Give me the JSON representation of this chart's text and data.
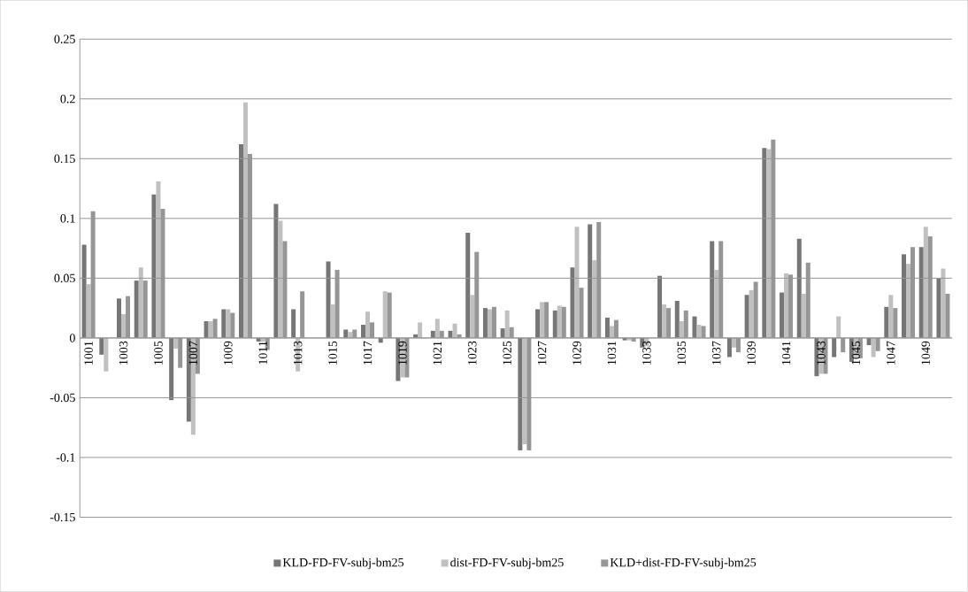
{
  "chart_data": {
    "type": "bar",
    "categories": [
      "1001",
      null,
      "1003",
      null,
      "1005",
      null,
      "1007",
      null,
      "1009",
      null,
      "1011",
      null,
      "1013",
      null,
      "1015",
      null,
      "1017",
      null,
      "1019",
      null,
      "1021",
      null,
      "1023",
      null,
      "1025",
      null,
      "1027",
      null,
      "1029",
      null,
      "1031",
      null,
      "1033",
      null,
      "1035",
      null,
      "1037",
      null,
      "1039",
      null,
      "1041",
      null,
      "1043",
      null,
      "1045",
      null,
      "1047",
      null,
      "1049",
      null
    ],
    "series": [
      {
        "name": "KLD-FD-FV-subj-bm25",
        "color": "#767676",
        "values": [
          0.078,
          -0.014,
          0.033,
          0.048,
          0.12,
          -0.052,
          -0.07,
          0.014,
          0.024,
          0.162,
          -0.003,
          0.112,
          0.024,
          0,
          0.064,
          0.007,
          0.011,
          -0.004,
          -0.036,
          0.003,
          0.006,
          0.006,
          0.088,
          0.025,
          0.008,
          -0.094,
          0.024,
          0.023,
          0.059,
          0.095,
          0.017,
          -0.002,
          -0.008,
          0.052,
          0.031,
          0.018,
          0.081,
          -0.016,
          0.036,
          0.159,
          0.038,
          0.083,
          -0.032,
          -0.016,
          -0.02,
          -0.006,
          0.026,
          0.07,
          0.076,
          0.05
        ]
      },
      {
        "name": "dist-FD-FV-subj-bm25",
        "color": "#c0c0c0",
        "values": [
          0.045,
          -0.028,
          0.02,
          0.059,
          0.131,
          -0.009,
          -0.081,
          0.014,
          0.024,
          0.197,
          -0.003,
          0.098,
          -0.028,
          0,
          0.028,
          0.005,
          0.022,
          0.039,
          -0.033,
          0.013,
          0.016,
          0.012,
          0.036,
          0.024,
          0.023,
          -0.089,
          0.03,
          0.027,
          0.093,
          0.065,
          0.01,
          -0.002,
          -0.007,
          0.028,
          0.014,
          0.011,
          0.057,
          -0.008,
          0.04,
          0.158,
          0.054,
          0.037,
          -0.03,
          0.018,
          -0.016,
          -0.016,
          0.036,
          0.062,
          0.093,
          0.058
        ]
      },
      {
        "name": "KLD+dist-FD-FV-subj-bm25",
        "color": "#969696",
        "values": [
          0.106,
          0,
          0.035,
          0.048,
          0.108,
          -0.025,
          -0.03,
          0.016,
          0.021,
          0.154,
          -0.01,
          0.081,
          0.039,
          0,
          0.057,
          0.007,
          0.013,
          0.038,
          -0.033,
          0,
          0.006,
          0.003,
          0.072,
          0.026,
          0.009,
          -0.094,
          0.03,
          0.026,
          0.042,
          0.097,
          0.015,
          -0.003,
          0,
          0.025,
          0.023,
          0.01,
          0.081,
          -0.012,
          0.047,
          0.166,
          0.053,
          0.063,
          -0.03,
          -0.012,
          -0.017,
          -0.011,
          0.025,
          0.076,
          0.085,
          0.037
        ]
      }
    ],
    "ylim": [
      -0.15,
      0.25
    ],
    "yticks": [
      -0.15,
      -0.1,
      -0.05,
      0,
      0.05,
      0.1,
      0.15,
      0.2,
      0.25
    ],
    "grid": "y",
    "legend": "bottom"
  }
}
